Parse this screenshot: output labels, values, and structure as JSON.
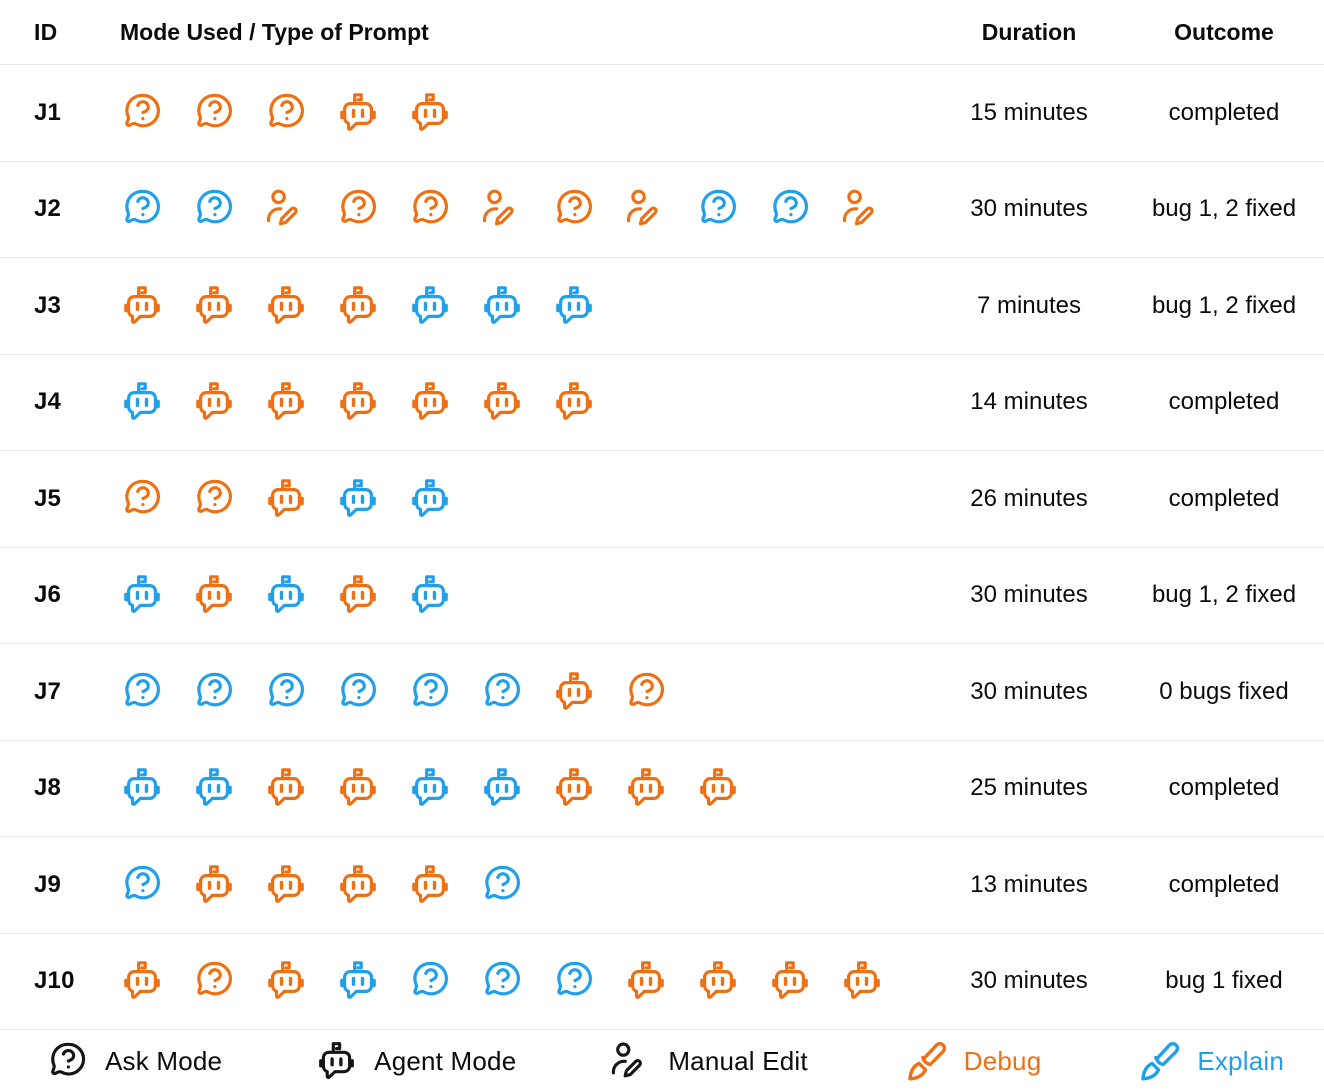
{
  "colors": {
    "debug": "#ED7014",
    "explain": "#219FE8",
    "black": "#151515",
    "text": "#0B0B0B",
    "divider": "#E9E9E9"
  },
  "table": {
    "headers": {
      "id": "ID",
      "mode": "Mode Used / Type of Prompt",
      "duration": "Duration",
      "outcome": "Outcome"
    },
    "rows": [
      {
        "id": "J1",
        "icons": [
          "ask:debug",
          "ask:debug",
          "ask:debug",
          "agent:debug",
          "agent:debug"
        ],
        "duration": "15 minutes",
        "outcome": "completed"
      },
      {
        "id": "J2",
        "icons": [
          "ask:explain",
          "ask:explain",
          "manual:debug",
          "ask:debug",
          "ask:debug",
          "manual:debug",
          "ask:debug",
          "manual:debug",
          "ask:explain",
          "ask:explain",
          "manual:debug"
        ],
        "duration": "30 minutes",
        "outcome": "bug 1, 2 fixed"
      },
      {
        "id": "J3",
        "icons": [
          "agent:debug",
          "agent:debug",
          "agent:debug",
          "agent:debug",
          "agent:explain",
          "agent:explain",
          "agent:explain"
        ],
        "duration": "7 minutes",
        "outcome": "bug 1, 2 fixed"
      },
      {
        "id": "J4",
        "icons": [
          "agent:explain",
          "agent:debug",
          "agent:debug",
          "agent:debug",
          "agent:debug",
          "agent:debug",
          "agent:debug"
        ],
        "duration": "14 minutes",
        "outcome": "completed"
      },
      {
        "id": "J5",
        "icons": [
          "ask:debug",
          "ask:debug",
          "agent:debug",
          "agent:explain",
          "agent:explain"
        ],
        "duration": "26 minutes",
        "outcome": "completed"
      },
      {
        "id": "J6",
        "icons": [
          "agent:explain",
          "agent:debug",
          "agent:explain",
          "agent:debug",
          "agent:explain"
        ],
        "duration": "30 minutes",
        "outcome": "bug 1, 2 fixed"
      },
      {
        "id": "J7",
        "icons": [
          "ask:explain",
          "ask:explain",
          "ask:explain",
          "ask:explain",
          "ask:explain",
          "ask:explain",
          "agent:debug",
          "ask:debug"
        ],
        "duration": "30 minutes",
        "outcome": "0 bugs fixed"
      },
      {
        "id": "J8",
        "icons": [
          "agent:explain",
          "agent:explain",
          "agent:debug",
          "agent:debug",
          "agent:explain",
          "agent:explain",
          "agent:debug",
          "agent:debug",
          "agent:debug"
        ],
        "duration": "25 minutes",
        "outcome": "completed"
      },
      {
        "id": "J9",
        "icons": [
          "ask:explain",
          "agent:debug",
          "agent:debug",
          "agent:debug",
          "agent:debug",
          "ask:explain"
        ],
        "duration": "13 minutes",
        "outcome": "completed"
      },
      {
        "id": "J10",
        "icons": [
          "agent:debug",
          "ask:debug",
          "agent:debug",
          "agent:explain",
          "ask:explain",
          "ask:explain",
          "ask:explain",
          "agent:debug",
          "agent:debug",
          "agent:debug",
          "agent:debug"
        ],
        "duration": "30 minutes",
        "outcome": "bug 1 fixed"
      }
    ]
  },
  "legend": [
    {
      "icon": "ask",
      "label": "Ask Mode",
      "color": "black"
    },
    {
      "icon": "agent",
      "label": "Agent Mode",
      "color": "black"
    },
    {
      "icon": "manual",
      "label": "Manual Edit",
      "color": "black"
    },
    {
      "icon": "brush",
      "label": "Debug",
      "color": "debug"
    },
    {
      "icon": "brush",
      "label": "Explain",
      "color": "explain"
    }
  ],
  "chart_data": {
    "type": "table",
    "columns": [
      "ID",
      "Mode Used / Type of Prompt",
      "Duration",
      "Outcome"
    ],
    "rows": [
      [
        "J1",
        "Ask(Debug), Ask(Debug), Ask(Debug), Agent(Debug), Agent(Debug)",
        "15 minutes",
        "completed"
      ],
      [
        "J2",
        "Ask(Explain), Ask(Explain), Manual Edit(Debug), Ask(Debug), Ask(Debug), Manual Edit(Debug), Ask(Debug), Manual Edit(Debug), Ask(Explain), Ask(Explain), Manual Edit(Debug)",
        "30 minutes",
        "bug 1, 2 fixed"
      ],
      [
        "J3",
        "Agent(Debug) x4, Agent(Explain) x3",
        "7 minutes",
        "bug 1, 2 fixed"
      ],
      [
        "J4",
        "Agent(Explain), Agent(Debug) x6",
        "14 minutes",
        "completed"
      ],
      [
        "J5",
        "Ask(Debug) x2, Agent(Debug), Agent(Explain) x2",
        "26 minutes",
        "completed"
      ],
      [
        "J6",
        "Agent(Explain), Agent(Debug), Agent(Explain), Agent(Debug), Agent(Explain)",
        "30 minutes",
        "bug 1, 2 fixed"
      ],
      [
        "J7",
        "Ask(Explain) x6, Agent(Debug), Ask(Debug)",
        "30 minutes",
        "0 bugs fixed"
      ],
      [
        "J8",
        "Agent(Explain) x2, Agent(Debug) x2, Agent(Explain) x2, Agent(Debug) x3",
        "25 minutes",
        "completed"
      ],
      [
        "J9",
        "Ask(Explain), Agent(Debug) x4, Ask(Explain)",
        "13 minutes",
        "completed"
      ],
      [
        "J10",
        "Agent(Debug), Ask(Debug), Agent(Debug), Agent(Explain), Ask(Explain) x3, Agent(Debug) x4",
        "30 minutes",
        "bug 1 fixed"
      ]
    ],
    "legend": [
      "Ask Mode",
      "Agent Mode",
      "Manual Edit",
      "Debug (orange)",
      "Explain (blue)"
    ]
  }
}
